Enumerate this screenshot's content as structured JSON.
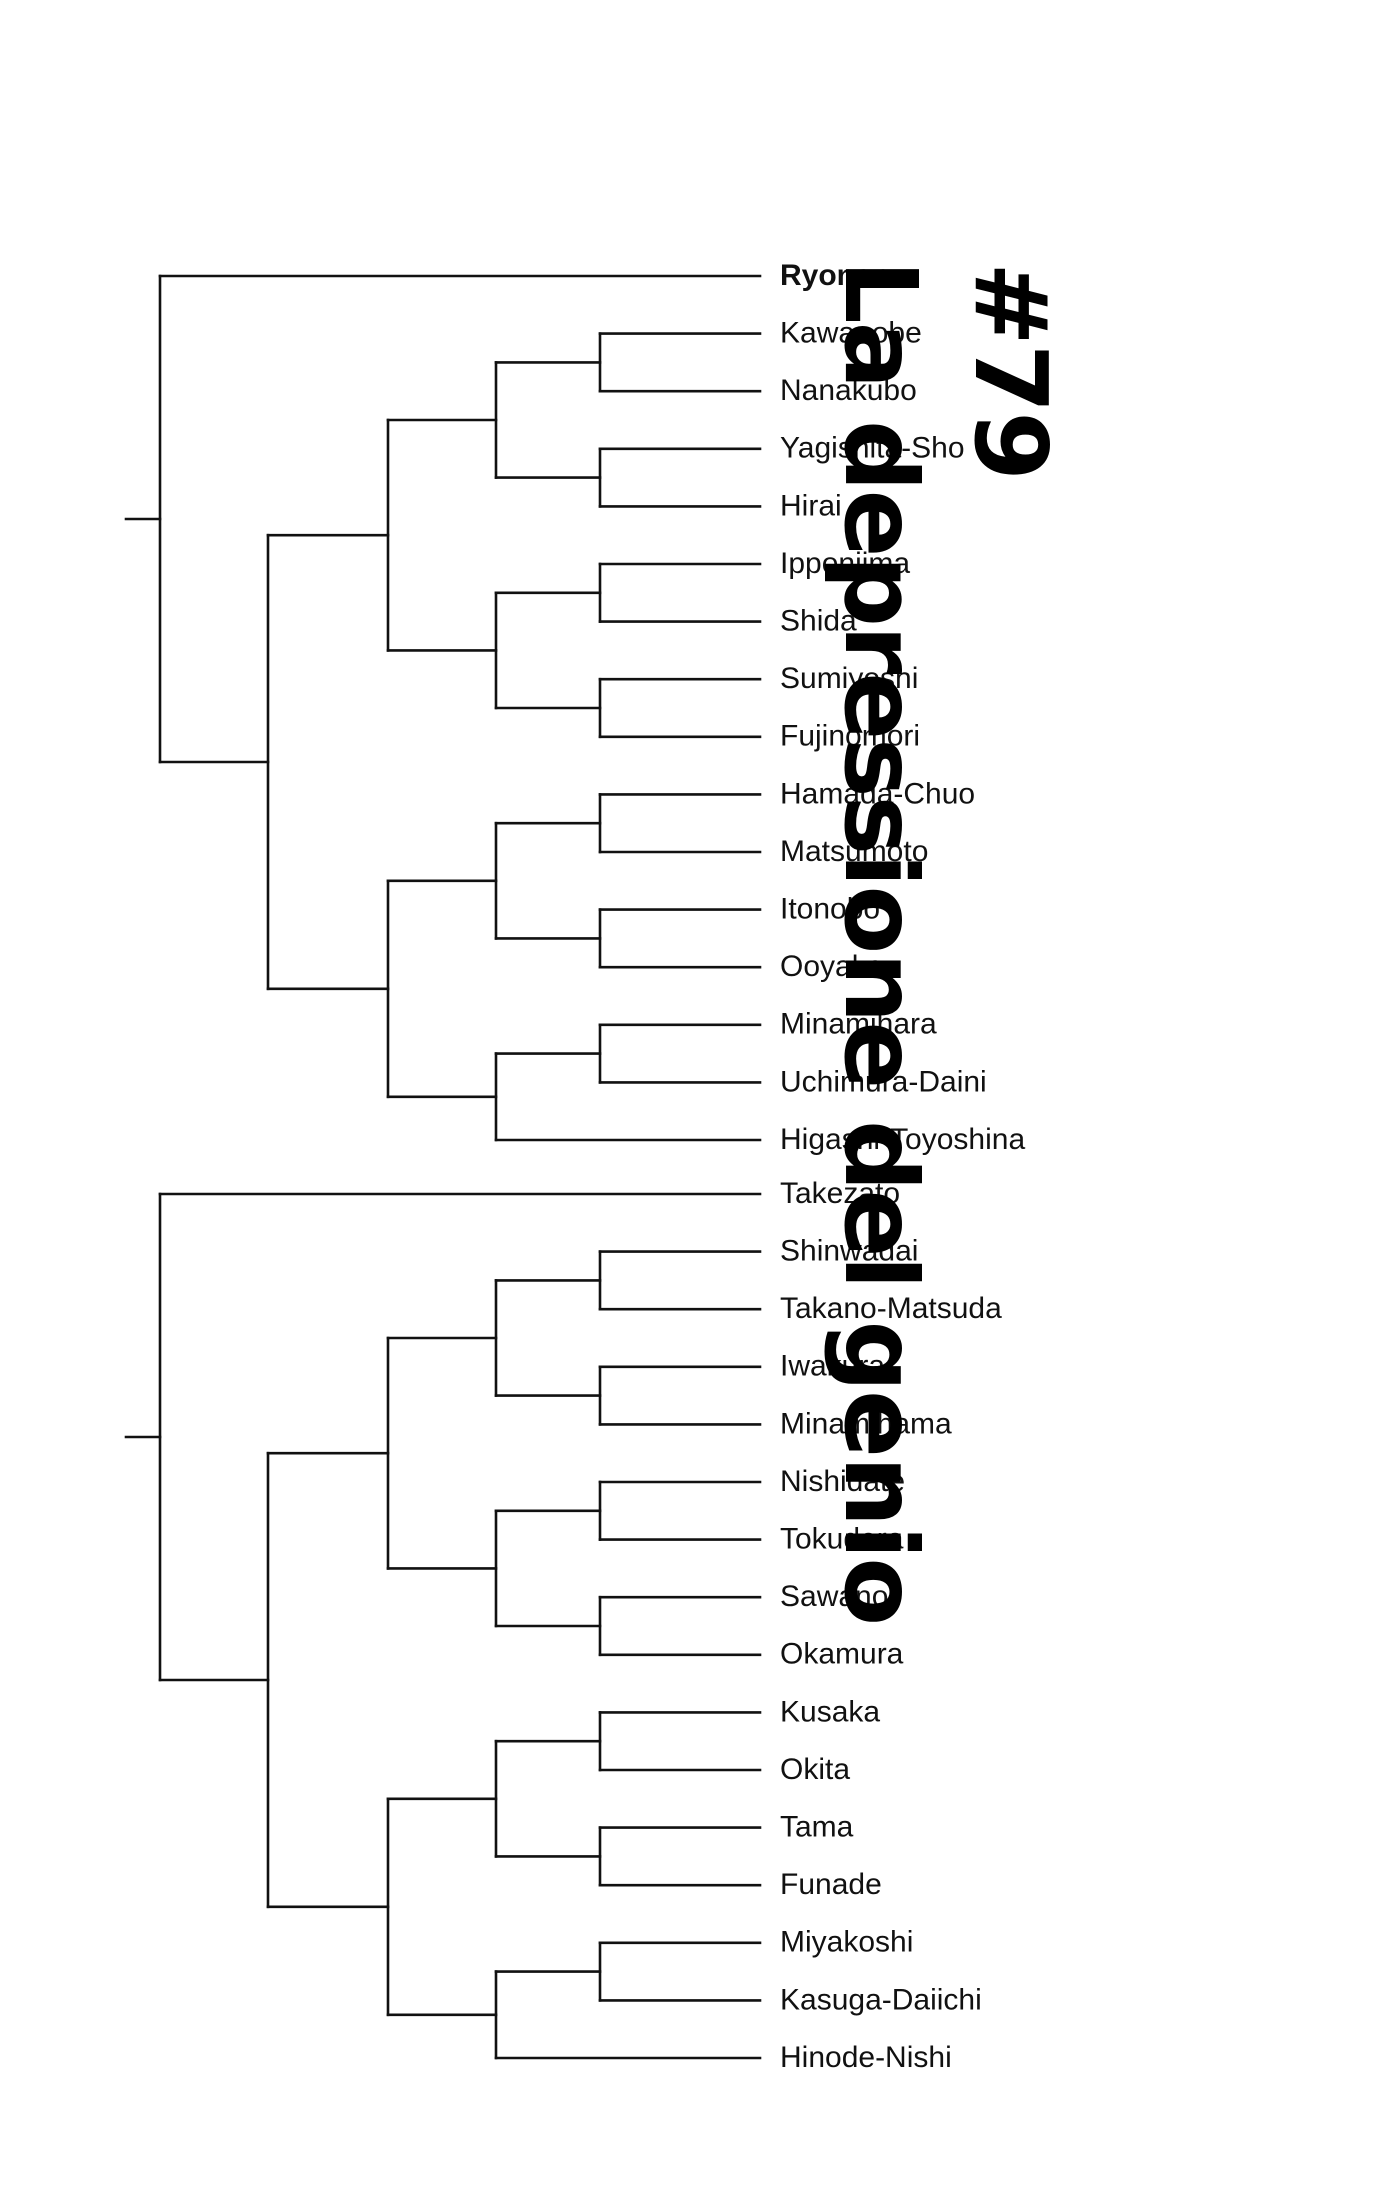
{
  "colors": {
    "ink": "#111111",
    "background": "#ffffff"
  },
  "title": {
    "chapter_number": "#79",
    "chapter_title": "La depressione del genio"
  },
  "bracket_top": {
    "teams": [
      {
        "name": "Ryonan",
        "bold": true
      },
      {
        "name": "Kawanobe"
      },
      {
        "name": "Nanakubo"
      },
      {
        "name": "Yagishita-Sho"
      },
      {
        "name": "Hirai"
      },
      {
        "name": "Ipponjima"
      },
      {
        "name": "Shida"
      },
      {
        "name": "Sumiyoshi"
      },
      {
        "name": "Fujinomori"
      },
      {
        "name": "Hamada-Chuo"
      },
      {
        "name": "Matsumoto"
      },
      {
        "name": "Itonobo"
      },
      {
        "name": "Ooyake"
      },
      {
        "name": "Minamihara"
      },
      {
        "name": "Uchimura-Daini"
      },
      {
        "name": "Higashi-Toyoshina"
      }
    ],
    "tree": [
      0,
      [
        [
          [
            [
              1,
              2
            ],
            [
              3,
              4
            ]
          ],
          [
            [
              5,
              6
            ],
            [
              7,
              8
            ]
          ]
        ],
        [
          [
            [
              9,
              10
            ],
            [
              11,
              12
            ]
          ],
          [
            [
              13,
              14
            ],
            15
          ]
        ]
      ]
    ]
  },
  "bracket_bottom": {
    "teams": [
      {
        "name": "Takezato"
      },
      {
        "name": "Shinwadai"
      },
      {
        "name": "Takano-Matsuda"
      },
      {
        "name": "Iwakura"
      },
      {
        "name": "Minamihama"
      },
      {
        "name": "Nishidate"
      },
      {
        "name": "Tokudera"
      },
      {
        "name": "Sawanoi"
      },
      {
        "name": "Okamura"
      },
      {
        "name": "Kusaka"
      },
      {
        "name": "Okita"
      },
      {
        "name": "Tama"
      },
      {
        "name": "Funade"
      },
      {
        "name": "Miyakoshi"
      },
      {
        "name": "Kasuga-Daiichi"
      },
      {
        "name": "Hinode-Nishi"
      }
    ],
    "tree": [
      0,
      [
        [
          [
            [
              1,
              2
            ],
            [
              3,
              4
            ]
          ],
          [
            [
              5,
              6
            ],
            [
              7,
              8
            ]
          ]
        ],
        [
          [
            [
              9,
              10
            ],
            [
              11,
              12
            ]
          ],
          [
            [
              13,
              14
            ],
            15
          ]
        ]
      ]
    ]
  }
}
